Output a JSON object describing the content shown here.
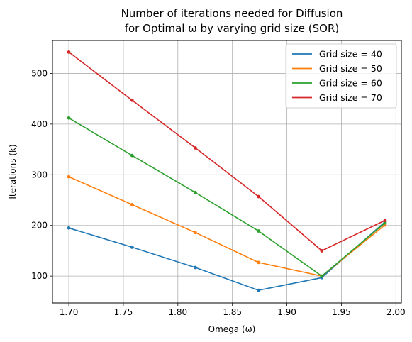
{
  "chart_data": {
    "type": "line",
    "title_line1": "Number of iterations needed for Diffusion",
    "title_line2": "for Optimal ω by varying grid size (SOR)",
    "xlabel": "Omega (ω)",
    "ylabel": "Iterations (k)",
    "xlim": [
      1.685,
      2.005
    ],
    "ylim": [
      47,
      565
    ],
    "xticks": [
      1.7,
      1.75,
      1.8,
      1.85,
      1.9,
      1.95,
      2.0
    ],
    "xtick_labels": [
      "1.70",
      "1.75",
      "1.80",
      "1.85",
      "1.90",
      "1.95",
      "2.00"
    ],
    "yticks": [
      100,
      200,
      300,
      400,
      500
    ],
    "ytick_labels": [
      "100",
      "200",
      "300",
      "400",
      "500"
    ],
    "grid": true,
    "legend_position": "top-right",
    "x": [
      1.7,
      1.758,
      1.816,
      1.874,
      1.932,
      1.99
    ],
    "series": [
      {
        "name": "Grid size = 40",
        "color": "#1f77b4",
        "values": [
          195,
          157,
          117,
          72,
          97,
          207
        ]
      },
      {
        "name": "Grid size = 50",
        "color": "#ff7f0e",
        "values": [
          296,
          241,
          186,
          127,
          100,
          201
        ]
      },
      {
        "name": "Grid size = 60",
        "color": "#2ca02c",
        "values": [
          412,
          338,
          265,
          189,
          100,
          205
        ]
      },
      {
        "name": "Grid size = 70",
        "color": "#d62728",
        "values": [
          542,
          447,
          353,
          257,
          150,
          210
        ]
      }
    ]
  }
}
